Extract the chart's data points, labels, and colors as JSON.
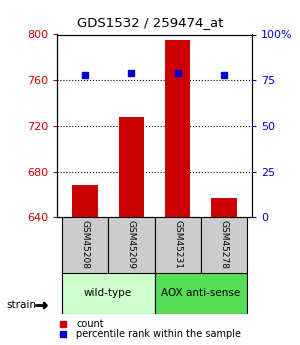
{
  "title": "GDS1532 / 259474_at",
  "samples": [
    "GSM45208",
    "GSM45209",
    "GSM45231",
    "GSM45278"
  ],
  "bar_values": [
    668,
    728,
    795,
    657
  ],
  "percentile_values": [
    78,
    79,
    79,
    78
  ],
  "bar_color": "#cc0000",
  "dot_color": "#0000cc",
  "ylim_left": [
    640,
    800
  ],
  "yticks_left": [
    640,
    680,
    720,
    760,
    800
  ],
  "ylim_right": [
    0,
    100
  ],
  "yticks_right": [
    0,
    25,
    50,
    75,
    100
  ],
  "yticklabels_right": [
    "0",
    "25",
    "50",
    "75",
    "100%"
  ],
  "groups": [
    {
      "label": "wild-type",
      "indices": [
        0,
        1
      ],
      "color": "#ccffcc"
    },
    {
      "label": "AOX anti-sense",
      "indices": [
        2,
        3
      ],
      "color": "#55dd55"
    }
  ],
  "strain_label": "strain",
  "legend_items": [
    {
      "color": "#cc0000",
      "label": "count"
    },
    {
      "color": "#0000cc",
      "label": "percentile rank within the sample"
    }
  ],
  "bar_width": 0.55,
  "background_color": "#ffffff",
  "left_axis_color": "#cc0000",
  "right_axis_color": "#0000cc",
  "grid_yticks": [
    680,
    720,
    760
  ]
}
